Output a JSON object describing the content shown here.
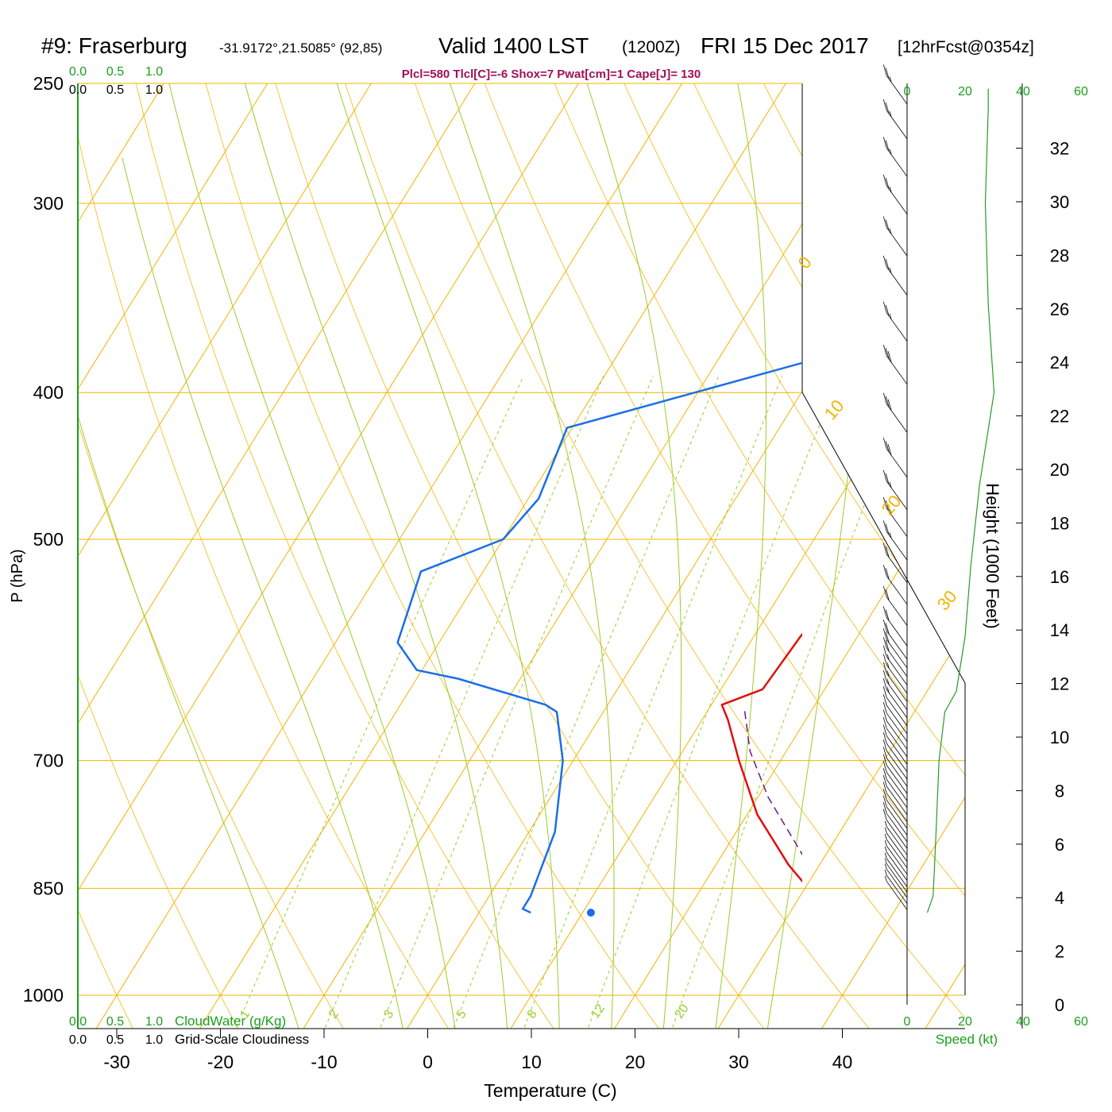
{
  "header": {
    "station": "#9: Fraserburg",
    "coords": "-31.9172°,21.5085° (92,85)",
    "valid": "Valid 1400 LST",
    "utc": "(1200Z)",
    "date": "FRI 15 Dec 2017",
    "forecast": "[12hrFcst@0354z]",
    "indices": "Plcl=580 Tlcl[C]=-6 Shox=7 Pwat[cm]=1 Cape[J]= 130"
  },
  "colors": {
    "temperature": "#e01010",
    "dewpoint": "#1a6ee8",
    "parcel": "#6a1a8a",
    "isobar": "#f2b400",
    "isotherm": "#f2b400",
    "dry_adiabat": "#9ccc2a",
    "moist_adiabat": "#9ccc2a",
    "mixing_ratio": "#9ccc2a",
    "speed_profile": "#2a9a2a",
    "green_label": "#1aa01a",
    "index_text": "#a0105a"
  },
  "axes": {
    "xlabel": "Temperature (C)",
    "ylabel": "P (hPa)",
    "y2label": "Height (1000 Feet)",
    "x_ticks": [
      "-30",
      "-20",
      "-10",
      "0",
      "10",
      "20",
      "30",
      "40"
    ],
    "x_tick_values": [
      -30,
      -20,
      -10,
      0,
      10,
      20,
      30,
      40
    ],
    "p_ticks": [
      "250",
      "300",
      "400",
      "500",
      "700",
      "850",
      "1000"
    ],
    "p_tick_values": [
      250,
      300,
      400,
      500,
      700,
      850,
      1000
    ],
    "height_ticks": [
      "0",
      "2",
      "4",
      "6",
      "8",
      "10",
      "12",
      "14",
      "16",
      "18",
      "20",
      "22",
      "24",
      "26",
      "28",
      "30",
      "32"
    ],
    "height_tick_values": [
      0,
      2,
      4,
      6,
      8,
      10,
      12,
      14,
      16,
      18,
      20,
      22,
      24,
      26,
      28,
      30,
      32
    ],
    "speed_label": "Speed (kt)",
    "speed_ticks": [
      "0",
      "20",
      "40",
      "60"
    ],
    "cloud_label": "CloudWater (g/Kg)",
    "cloud_ticks": [
      "0.0",
      "0.5",
      "1.0"
    ],
    "cloudiness_label": "Grid-Scale Cloudiness",
    "cloudiness_ticks": [
      "0.0",
      "0.5",
      "1.0"
    ]
  },
  "chart_data": {
    "type": "line",
    "title": "",
    "skew_t": true,
    "temp_range_c": [
      -33,
      36
    ],
    "pressure_range_hpa": [
      250,
      1000
    ],
    "log_pressure": true,
    "isotherm_labels": [
      "30",
      "20",
      "10",
      "0",
      "-10",
      "-20",
      "-30"
    ],
    "isotherm_label_values": [
      30,
      20,
      10,
      0,
      -10,
      -20,
      -30
    ],
    "isotherm_right_labels": [
      "0",
      "10",
      "20",
      "30"
    ],
    "mixing_ratio_labels": [
      "1",
      "2",
      "3",
      "5",
      "8",
      "12",
      "20"
    ],
    "mixing_ratio_values": [
      1,
      2,
      3,
      5,
      8,
      12,
      20
    ],
    "series": [
      {
        "name": "",
        "key": "temperature",
        "points": [
          [
            35.0,
            882
          ],
          [
            33.0,
            875
          ],
          [
            27.0,
            820
          ],
          [
            21.0,
            760
          ],
          [
            16.0,
            700
          ],
          [
            12.5,
            658
          ],
          [
            11.0,
            643
          ],
          [
            14.0,
            628
          ],
          [
            14.5,
            580
          ],
          [
            15.5,
            525
          ],
          [
            17.2,
            500
          ],
          [
            19.5,
            460
          ],
          [
            24.0,
            420
          ],
          [
            27.5,
            385
          ],
          [
            31.5,
            350
          ],
          [
            35.0,
            320
          ],
          [
            39.0,
            295
          ],
          [
            43.5,
            265
          ],
          [
            46.0,
            252
          ]
        ]
      },
      {
        "name": "",
        "key": "dewpoint",
        "points": [
          [
            5.0,
            882
          ],
          [
            4.0,
            877
          ],
          [
            4.0,
            860
          ],
          [
            2.5,
            780
          ],
          [
            -1.0,
            700
          ],
          [
            -4.5,
            650
          ],
          [
            -6.0,
            643
          ],
          [
            -16.0,
            618
          ],
          [
            -20.5,
            610
          ],
          [
            -24.0,
            585
          ],
          [
            -26.0,
            525
          ],
          [
            -20.0,
            500
          ],
          [
            -19.0,
            470
          ],
          [
            -20.5,
            422
          ],
          [
            -0.5,
            380
          ],
          [
            5.0,
            355
          ],
          [
            7.0,
            340
          ],
          [
            3.0,
            320
          ],
          [
            -0.5,
            295
          ],
          [
            -2.5,
            270
          ],
          [
            -1.0,
            252
          ]
        ]
      },
      {
        "name": "",
        "key": "parcel",
        "points": [
          [
            34.5,
            882
          ],
          [
            27.5,
            805
          ],
          [
            21.0,
            740
          ],
          [
            16.5,
            690
          ],
          [
            13.5,
            648
          ]
        ]
      }
    ],
    "surface_points": [
      {
        "key": "temperature",
        "t": 35.5,
        "p": 882
      },
      {
        "key": "dewpoint",
        "t": 10.8,
        "p": 882
      }
    ],
    "speed_kt": [
      [
        7,
        882
      ],
      [
        9,
        860
      ],
      [
        10,
        780
      ],
      [
        11,
        700
      ],
      [
        13,
        650
      ],
      [
        17,
        630
      ],
      [
        20,
        580
      ],
      [
        22,
        520
      ],
      [
        25,
        460
      ],
      [
        30,
        400
      ],
      [
        28,
        350
      ],
      [
        27,
        300
      ],
      [
        28,
        260
      ],
      [
        28,
        252
      ]
    ],
    "barbs_pressure": [
      878,
      870,
      862,
      855,
      848,
      840,
      832,
      824,
      816,
      808,
      800,
      792,
      784,
      776,
      768,
      760,
      752,
      744,
      736,
      728,
      720,
      712,
      704,
      696,
      688,
      680,
      672,
      664,
      656,
      648,
      640,
      632,
      624,
      616,
      608,
      600,
      588,
      570,
      552,
      534,
      516,
      498,
      478,
      455,
      425,
      395,
      370,
      345,
      325,
      305,
      288,
      272,
      258
    ],
    "barbs_speed_kt": [
      6,
      6,
      7,
      7,
      8,
      8,
      8,
      9,
      9,
      9,
      10,
      10,
      10,
      10,
      11,
      11,
      11,
      11,
      12,
      12,
      12,
      12,
      12,
      13,
      13,
      13,
      14,
      14,
      15,
      16,
      17,
      18,
      19,
      20,
      20,
      21,
      22,
      22,
      23,
      24,
      25,
      27,
      28,
      30,
      30,
      30,
      29,
      28,
      27,
      28,
      28,
      28,
      28
    ],
    "height_kft": [
      [
        0,
        1000
      ],
      [
        4,
        875
      ],
      [
        12.5,
        648
      ],
      [
        24,
        400
      ],
      [
        30,
        300
      ],
      [
        33,
        263
      ]
    ]
  }
}
